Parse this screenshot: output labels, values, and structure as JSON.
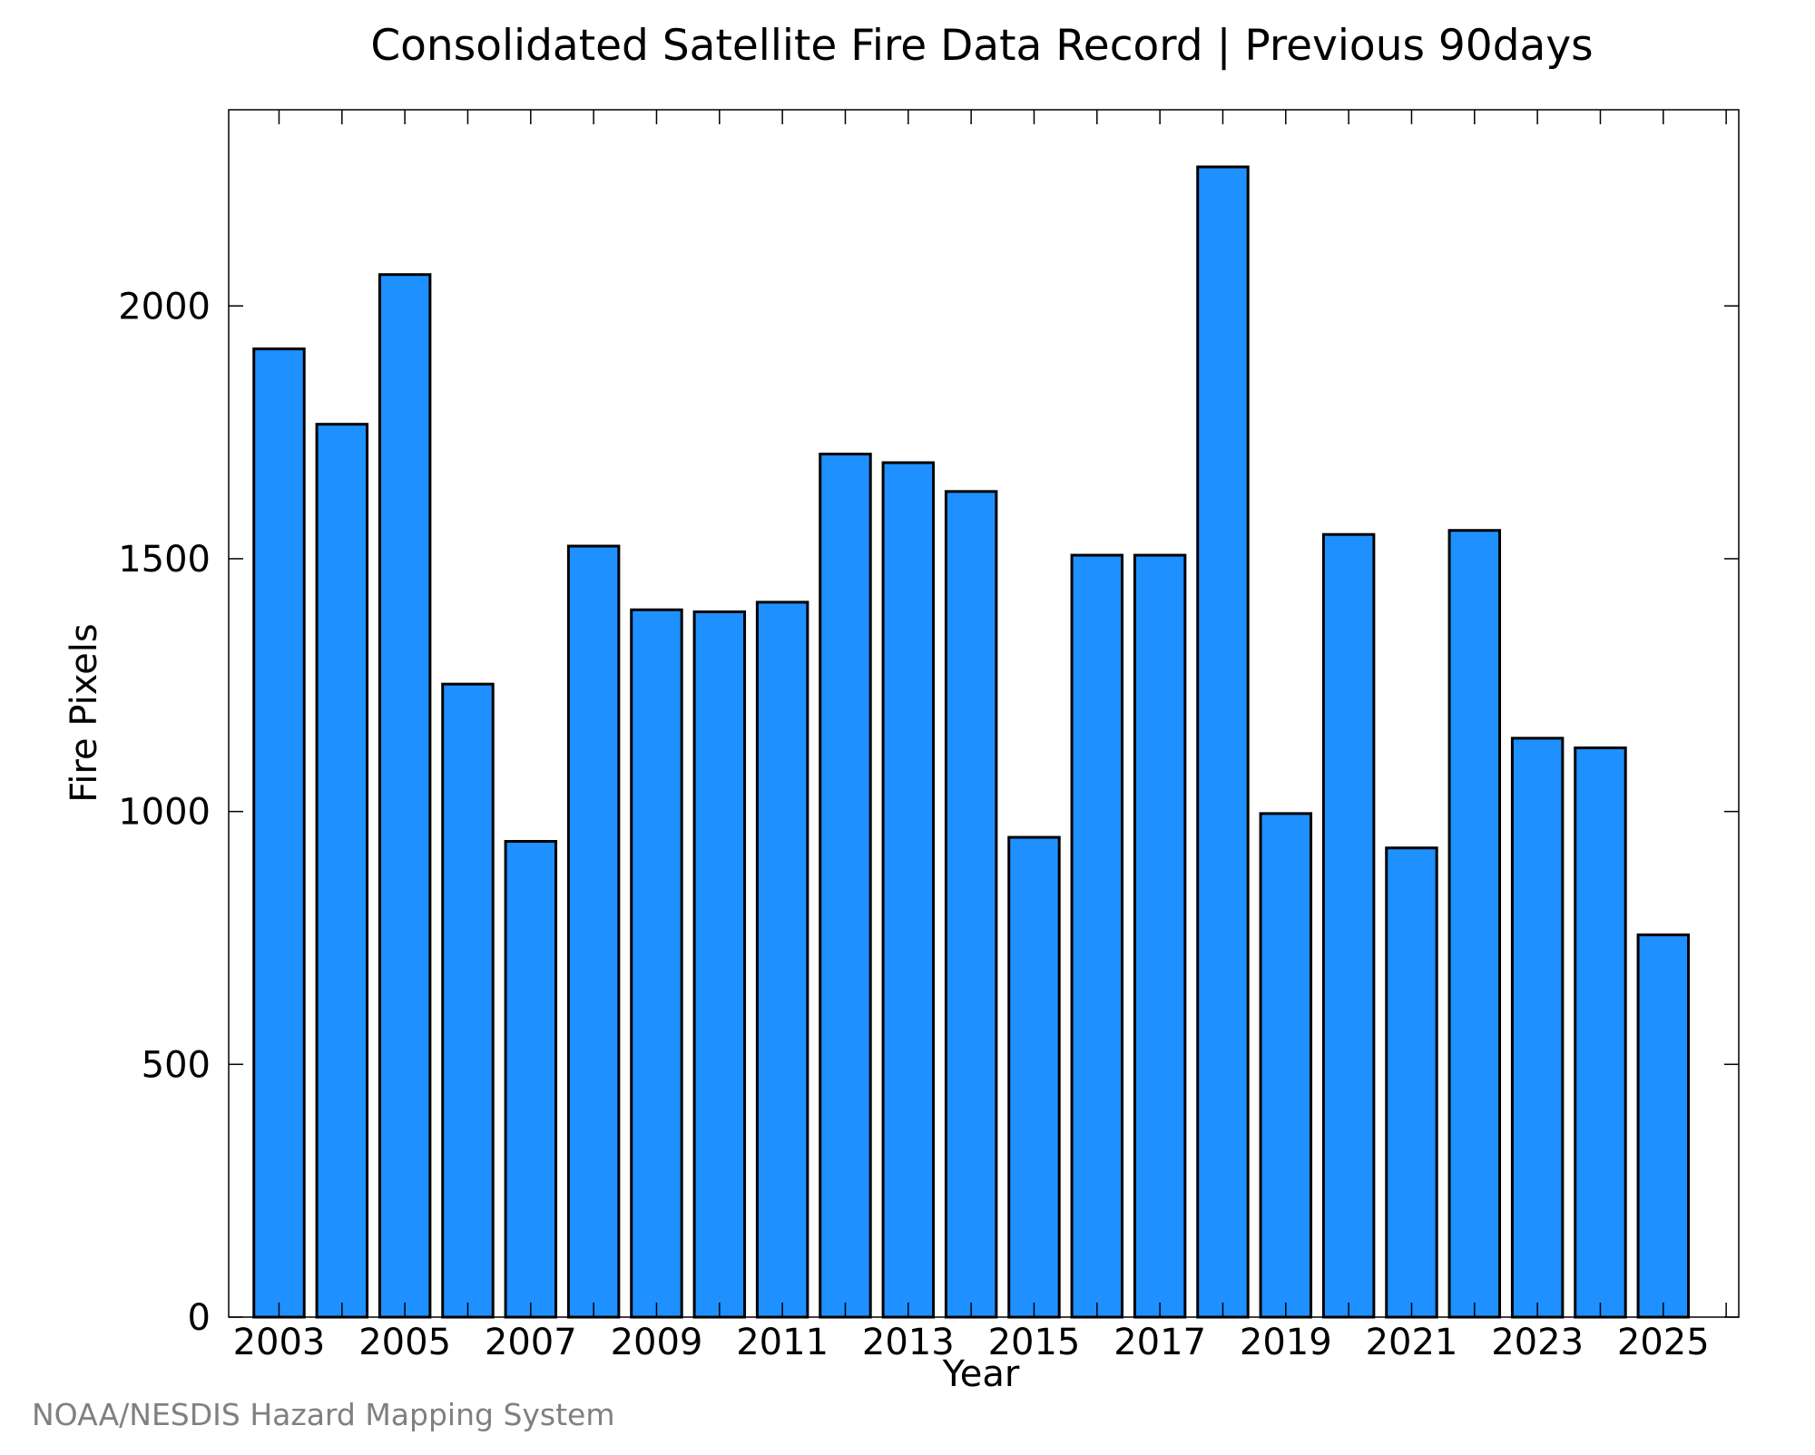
{
  "chart_data": {
    "type": "bar",
    "title": "Consolidated Satellite Fire Data Record | Previous 90days",
    "xlabel": "Year",
    "ylabel": "Fire Pixels",
    "categories": [
      2003,
      2004,
      2005,
      2006,
      2007,
      2008,
      2009,
      2010,
      2011,
      2012,
      2013,
      2014,
      2015,
      2016,
      2017,
      2018,
      2019,
      2020,
      2021,
      2022,
      2023,
      2024,
      2025
    ],
    "values": [
      1915,
      1766,
      2062,
      1252,
      941,
      1525,
      1399,
      1395,
      1414,
      1707,
      1690,
      1633,
      949,
      1507,
      1507,
      2275,
      996,
      1548,
      928,
      1556,
      1145,
      1126,
      756
    ],
    "x_tick_labels": [
      "2003",
      "2005",
      "2007",
      "2009",
      "2011",
      "2013",
      "2015",
      "2017",
      "2019",
      "2021",
      "2023",
      "2025"
    ],
    "y_ticks": [
      0,
      500,
      1000,
      1500,
      2000
    ],
    "ylim": [
      0,
      2388
    ],
    "xlim": [
      2002.2,
      2026.2
    ],
    "bar_color": "#1e90ff",
    "bar_edge_color": "#000000",
    "grid": false,
    "legend": false
  },
  "credit": "NOAA/NESDIS Hazard Mapping System"
}
